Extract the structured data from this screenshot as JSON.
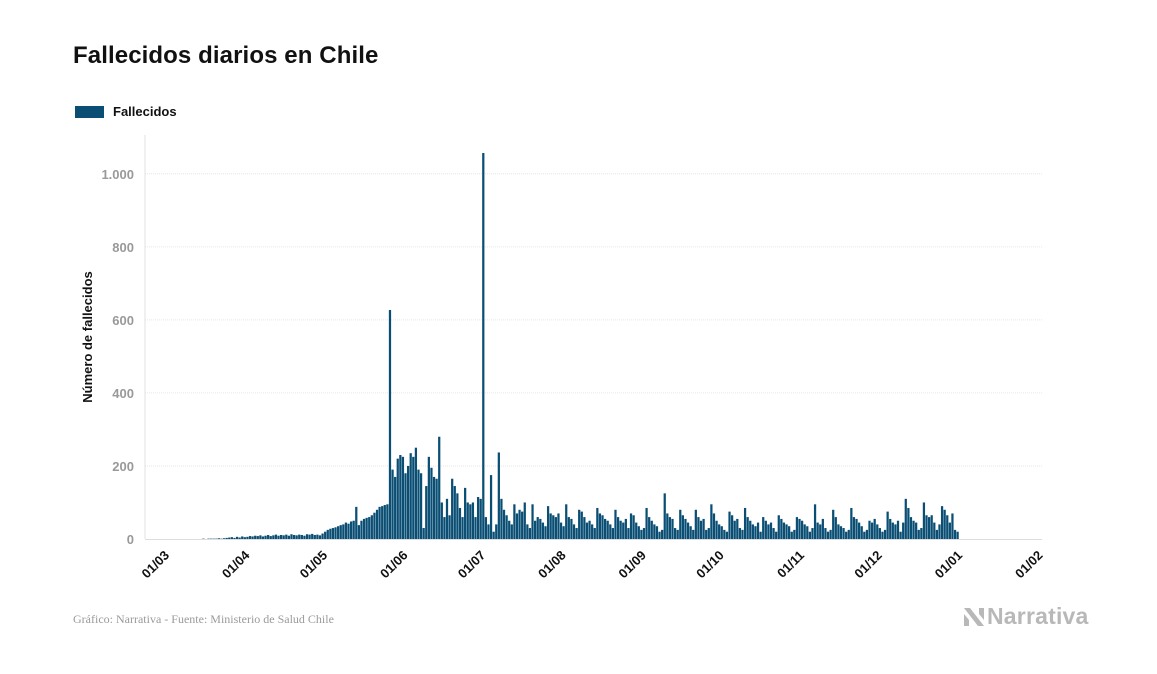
{
  "title": "Fallecidos diarios en Chile",
  "legend": {
    "label": "Fallecidos"
  },
  "footer": {
    "source": "Gráfico: Narrativa - Fuente: Ministerio de Salud Chile"
  },
  "brand": {
    "name": "Narrativa"
  },
  "colors": {
    "bar": "#0a4e74",
    "grid": "#e6e6e6",
    "tick": "#999999",
    "brand": "#b8b8b8"
  },
  "chart_data": {
    "type": "bar",
    "title": "Fallecidos diarios en Chile",
    "xlabel": "",
    "ylabel": "Número de fallecidos",
    "ylim": [
      0,
      1100
    ],
    "yticks": [
      0,
      200,
      400,
      600,
      800,
      1000
    ],
    "ytick_labels": [
      "0",
      "200",
      "400",
      "600",
      "800",
      "1.000"
    ],
    "xlim_days": [
      0,
      340
    ],
    "xticks": [
      {
        "day": 0,
        "label": "01/03"
      },
      {
        "day": 31,
        "label": "01/04"
      },
      {
        "day": 61,
        "label": "01/05"
      },
      {
        "day": 92,
        "label": "01/06"
      },
      {
        "day": 122,
        "label": "01/07"
      },
      {
        "day": 153,
        "label": "01/08"
      },
      {
        "day": 184,
        "label": "01/09"
      },
      {
        "day": 214,
        "label": "01/10"
      },
      {
        "day": 245,
        "label": "01/11"
      },
      {
        "day": 275,
        "label": "01/12"
      },
      {
        "day": 306,
        "label": "01/01"
      },
      {
        "day": 337,
        "label": "01/02"
      }
    ],
    "start_date": "2020-03-01",
    "series": [
      {
        "name": "Fallecidos",
        "start_day": 21,
        "values": [
          1,
          0,
          1,
          1,
          1,
          1,
          2,
          1,
          2,
          3,
          4,
          5,
          3,
          6,
          4,
          7,
          5,
          6,
          8,
          7,
          9,
          8,
          10,
          7,
          9,
          11,
          8,
          10,
          12,
          9,
          11,
          10,
          12,
          9,
          13,
          11,
          10,
          12,
          11,
          9,
          13,
          12,
          14,
          11,
          12,
          10,
          15,
          20,
          25,
          28,
          30,
          32,
          35,
          38,
          40,
          45,
          42,
          48,
          50,
          88,
          38,
          50,
          55,
          58,
          60,
          65,
          72,
          80,
          88,
          90,
          93,
          95,
          627,
          190,
          170,
          220,
          230,
          225,
          180,
          200,
          235,
          225,
          250,
          190,
          180,
          30,
          145,
          225,
          195,
          170,
          165,
          280,
          100,
          60,
          110,
          65,
          165,
          145,
          125,
          85,
          60,
          140,
          100,
          95,
          100,
          60,
          115,
          110,
          1057,
          60,
          40,
          175,
          20,
          40,
          237,
          110,
          80,
          65,
          50,
          40,
          95,
          70,
          80,
          75,
          100,
          40,
          30,
          95,
          50,
          60,
          55,
          45,
          35,
          90,
          70,
          65,
          60,
          70,
          45,
          35,
          95,
          60,
          55,
          40,
          30,
          80,
          75,
          60,
          45,
          50,
          40,
          30,
          85,
          70,
          65,
          55,
          50,
          40,
          30,
          80,
          60,
          50,
          45,
          55,
          30,
          70,
          65,
          45,
          35,
          25,
          30,
          85,
          60,
          50,
          40,
          35,
          20,
          25,
          125,
          70,
          60,
          55,
          30,
          25,
          80,
          65,
          55,
          45,
          35,
          25,
          80,
          60,
          50,
          55,
          25,
          30,
          95,
          70,
          50,
          40,
          35,
          25,
          20,
          75,
          65,
          50,
          55,
          30,
          25,
          85,
          60,
          50,
          40,
          35,
          45,
          20,
          60,
          50,
          40,
          45,
          30,
          20,
          65,
          55,
          45,
          40,
          35,
          20,
          25,
          60,
          55,
          50,
          40,
          35,
          20,
          30,
          95,
          45,
          40,
          55,
          30,
          20,
          25,
          80,
          60,
          40,
          35,
          30,
          20,
          25,
          85,
          60,
          55,
          45,
          35,
          20,
          25,
          50,
          45,
          55,
          40,
          30,
          20,
          25,
          75,
          55,
          45,
          40,
          50,
          20,
          45,
          110,
          85,
          60,
          50,
          45,
          25,
          30,
          100,
          65,
          60,
          65,
          45,
          25,
          40,
          90,
          80,
          65,
          45,
          70,
          25,
          20
        ],
        "units": "daily deaths"
      }
    ],
    "legend_position": "top-left"
  }
}
